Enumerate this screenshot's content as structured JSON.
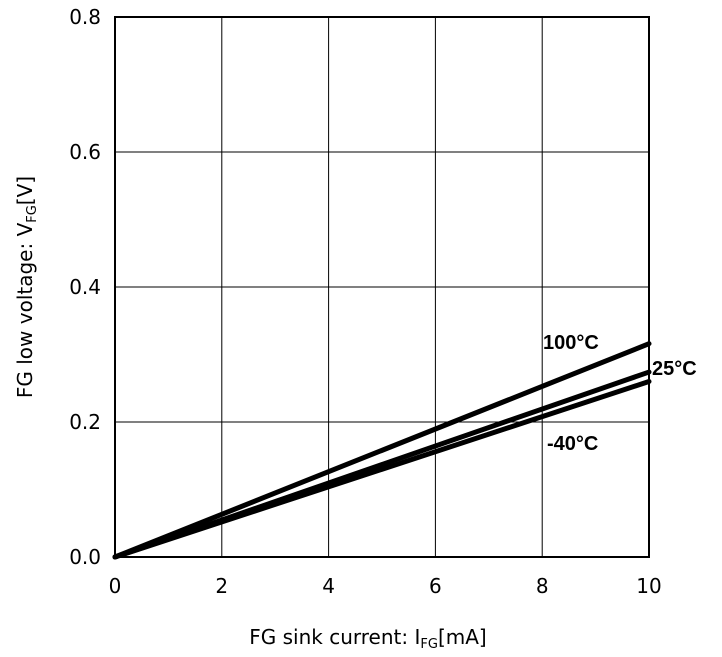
{
  "chart_data": {
    "type": "line",
    "xlabel": {
      "main": "FG sink current: I",
      "sub": "FG",
      "unit": "[mA]"
    },
    "ylabel": {
      "main": "FG low voltage: V",
      "sub": "FG",
      "unit": "[V]"
    },
    "xlim": [
      0,
      10
    ],
    "ylim": [
      0,
      0.8
    ],
    "x_ticks": [
      0,
      2,
      4,
      6,
      8,
      10
    ],
    "x_tick_labels": [
      "0",
      "2",
      "4",
      "6",
      "8",
      "10"
    ],
    "y_ticks": [
      0,
      0.2,
      0.4,
      0.6,
      0.8
    ],
    "y_tick_labels": [
      "0.0",
      "0.2",
      "0.4",
      "0.6",
      "0.8"
    ],
    "grid": true,
    "legend": "none",
    "series": [
      {
        "name": "100°C",
        "x": [
          0,
          10
        ],
        "values": [
          0,
          0.316
        ]
      },
      {
        "name": "25°C",
        "x": [
          0,
          10
        ],
        "values": [
          0,
          0.274
        ]
      },
      {
        "name": "-40°C",
        "x": [
          0,
          10
        ],
        "values": [
          0,
          0.26
        ]
      }
    ]
  }
}
